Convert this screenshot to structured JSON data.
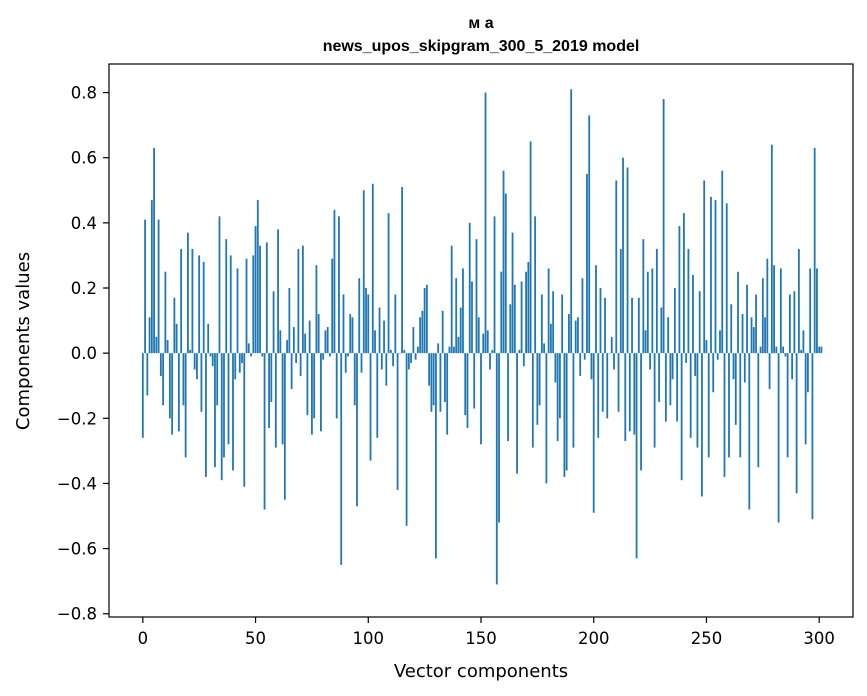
{
  "chart_data": {
    "type": "bar",
    "title_line1": "м а",
    "title_line2": "news_upos_skipgram_300_5_2019 model",
    "xlabel": "Vector components",
    "ylabel": "Components values",
    "xlim": [
      -15,
      315
    ],
    "ylim": [
      -0.81,
      0.8877
    ],
    "x_ticks": [
      0,
      50,
      100,
      150,
      200,
      250,
      300
    ],
    "x_tick_labels": [
      "0",
      "50",
      "100",
      "150",
      "200",
      "250",
      "300"
    ],
    "y_ticks": [
      0.8,
      0.6,
      0.4,
      0.2,
      0.0,
      -0.2,
      -0.4,
      -0.6,
      -0.8
    ],
    "y_tick_labels": [
      "0.8",
      "0.6",
      "0.4",
      "0.2",
      "0.0",
      "−0.2",
      "−0.4",
      "−0.6",
      "−0.8"
    ],
    "bar_color": "#1f77b4",
    "values": [
      -0.26,
      0.41,
      -0.13,
      0.11,
      0.47,
      0.63,
      0.05,
      0.41,
      -0.07,
      -0.16,
      0.25,
      0.04,
      -0.2,
      -0.25,
      0.17,
      0.09,
      -0.24,
      0.32,
      -0.16,
      -0.32,
      0.37,
      0.01,
      0.32,
      -0.05,
      -0.08,
      0.3,
      -0.18,
      0.28,
      -0.38,
      0.09,
      -0.01,
      -0.04,
      -0.35,
      -0.16,
      0.42,
      -0.39,
      -0.32,
      0.35,
      -0.28,
      0.3,
      -0.36,
      -0.08,
      0.26,
      -0.06,
      -0.03,
      -0.41,
      0.29,
      0.03,
      -0.01,
      0.3,
      0.39,
      0.47,
      0.33,
      -0.01,
      -0.48,
      0.34,
      -0.23,
      -0.15,
      0.19,
      -0.29,
      0.38,
      0.07,
      -0.28,
      -0.45,
      0.04,
      0.2,
      -0.11,
      0.08,
      -0.03,
      0.32,
      -0.07,
      0.33,
      0.06,
      -0.19,
      0.1,
      -0.25,
      -0.2,
      0.27,
      0.12,
      -0.24,
      -0.02,
      0.07,
      0.08,
      -0.01,
      0.29,
      0.44,
      -0.2,
      0.42,
      -0.65,
      0.18,
      -0.06,
      -0.01,
      0.12,
      0.11,
      -0.16,
      -0.47,
      0.23,
      -0.06,
      0.5,
      0.2,
      0.18,
      -0.33,
      0.52,
      0.07,
      -0.26,
      0.14,
      -0.05,
      0.1,
      -0.1,
      0.43,
      0.01,
      -0.04,
      0.18,
      -0.42,
      0.0,
      0.51,
      0.01,
      -0.53,
      -0.05,
      -0.03,
      0.08,
      -0.02,
      0.02,
      0.11,
      0.13,
      0.2,
      0.21,
      -0.1,
      -0.18,
      -0.16,
      -0.63,
      0.03,
      -0.18,
      0.13,
      -0.15,
      -0.25,
      0.02,
      0.33,
      0.02,
      0.23,
      0.05,
      0.14,
      0.26,
      -0.19,
      -0.23,
      0.4,
      0.22,
      -0.17,
      0.35,
      0.11,
      -0.28,
      0.06,
      0.8,
      0.07,
      -0.05,
      0.01,
      0.42,
      -0.71,
      -0.52,
      0.25,
      0.56,
      0.49,
      -0.27,
      0.15,
      0.37,
      0.21,
      -0.37,
      0.01,
      0.22,
      -0.04,
      0.25,
      0.28,
      0.65,
      -0.29,
      0.42,
      -0.22,
      -0.16,
      0.18,
      0.03,
      -0.4,
      0.26,
      0.09,
      0.19,
      -0.09,
      -0.27,
      -0.2,
      0.18,
      -0.38,
      -0.36,
      0.12,
      0.81,
      -0.29,
      0.1,
      0.11,
      -0.07,
      0.23,
      -0.02,
      0.55,
      0.73,
      -0.08,
      -0.49,
      0.27,
      -0.26,
      0.2,
      -0.18,
      0.17,
      -0.2,
      0.0,
      0.05,
      -0.05,
      0.53,
      -0.18,
      0.32,
      0.6,
      -0.27,
      0.57,
      -0.24,
      0.17,
      -0.25,
      -0.63,
      0.17,
      -0.36,
      0.35,
      0.07,
      0.25,
      -0.05,
      0.26,
      -0.29,
      0.32,
      -0.15,
      0.14,
      0.78,
      -0.21,
      0.11,
      -0.16,
      -0.08,
      0.2,
      -0.21,
      0.39,
      -0.39,
      0.43,
      -0.03,
      0.32,
      -0.26,
      0.24,
      -0.07,
      -0.29,
      0.19,
      -0.44,
      0.53,
      0.04,
      -0.32,
      0.48,
      -0.12,
      0.47,
      -0.02,
      0.07,
      0.56,
      -0.38,
      0.46,
      -0.32,
      0.15,
      -0.08,
      -0.22,
      0.25,
      -0.32,
      0.12,
      -0.09,
      0.21,
      -0.48,
      0.11,
      0.08,
      0.18,
      -0.35,
      0.02,
      0.23,
      0.11,
      0.29,
      -0.11,
      0.64,
      0.27,
      0.02,
      -0.52,
      0.26,
      0.02,
      -0.01,
      -0.32,
      0.18,
      -0.08,
      0.19,
      -0.43,
      0.32,
      0.01,
      0.07,
      -0.28,
      -0.12,
      0.26,
      -0.51,
      0.63,
      0.26,
      0.02,
      0.02
    ]
  }
}
